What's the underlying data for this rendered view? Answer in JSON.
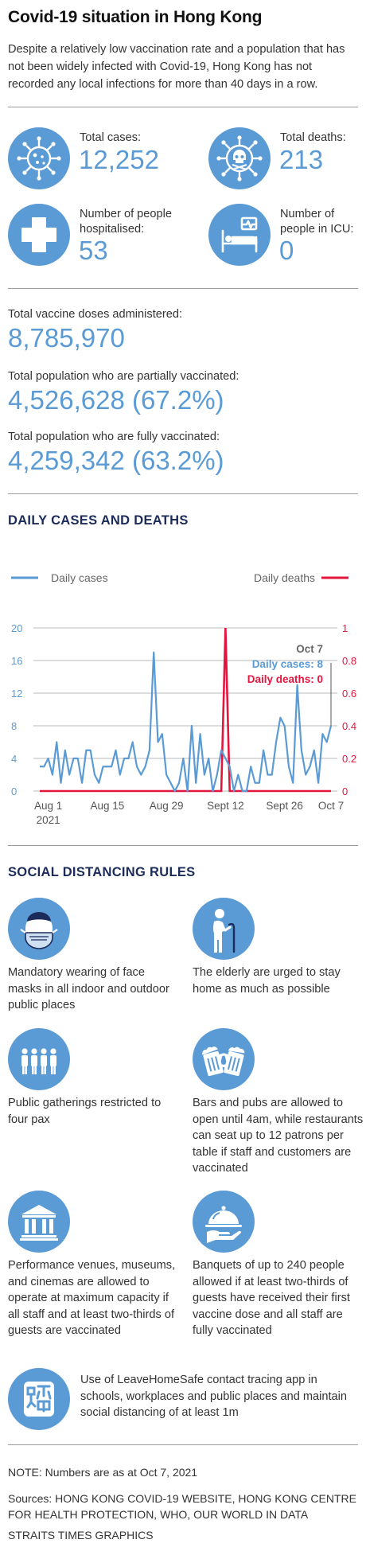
{
  "header": {
    "title": "Covid-19 situation in Hong Kong",
    "intro": "Despite a relatively low vaccination rate and a population that has not been widely infected with Covid-19, Hong Kong has not recorded any local infections for more than 40 days in a row."
  },
  "stats": {
    "total_cases": {
      "label": "Total cases:",
      "value": "12,252",
      "icon": "virus-icon"
    },
    "total_deaths": {
      "label": "Total deaths:",
      "value": "213",
      "icon": "virus-skull-icon"
    },
    "hospitalised": {
      "label": "Number of people hospitalised:",
      "value": "53",
      "icon": "medical-cross-icon"
    },
    "icu": {
      "label": "Number of people in ICU:",
      "value": "0",
      "icon": "hospital-bed-icon"
    }
  },
  "vaccine": {
    "doses_label": "Total vaccine doses administered:",
    "doses_value": "8,785,970",
    "partial_label": "Total population who are partially vaccinated:",
    "partial_value": "4,526,628 (67.2%)",
    "full_label": "Total population who are fully vaccinated:",
    "full_value": "4,259,342 (63.2%)"
  },
  "chart_section": {
    "title": "DAILY CASES AND DEATHS"
  },
  "chart_data": {
    "type": "line",
    "title": "DAILY CASES AND DEATHS",
    "x_labels": [
      "Aug 1",
      "Aug 15",
      "Aug 29",
      "Sept 12",
      "Sept 26",
      "Oct 7"
    ],
    "x_sublabel": "2021",
    "x_label_days": [
      0,
      14,
      28,
      42,
      56,
      67
    ],
    "y_left_ticks": [
      0,
      4,
      8,
      12,
      16,
      20
    ],
    "y_right_ticks": [
      "0",
      "0.2",
      "0.4",
      "0.6",
      "0.8",
      "1"
    ],
    "ylim_left": [
      0,
      20
    ],
    "ylim_right": [
      0,
      1
    ],
    "grid": true,
    "legend_placement": "top",
    "series": [
      {
        "name": "Daily cases",
        "axis": "left",
        "color": "#5b9bd5",
        "values": [
          3,
          3,
          4,
          2,
          6,
          1,
          5,
          2,
          4,
          4,
          1,
          5,
          5,
          2,
          1,
          3,
          3,
          3,
          5,
          2,
          4,
          4,
          6,
          3,
          2,
          3,
          5,
          17,
          6,
          7,
          2,
          1,
          0,
          1,
          4,
          0,
          8,
          1,
          7,
          2,
          4,
          0,
          2,
          5,
          4,
          3,
          0,
          2,
          0,
          0,
          3,
          1,
          1,
          5,
          2,
          2,
          6,
          9,
          8,
          3,
          1,
          13,
          5,
          2,
          3,
          5,
          1,
          7,
          6,
          8
        ],
        "x_start_day": -2
      },
      {
        "name": "Daily deaths",
        "axis": "right",
        "color": "#e3173e",
        "values": [
          0,
          0,
          0,
          0,
          0,
          0,
          0,
          0,
          0,
          0,
          0,
          0,
          0,
          0,
          0,
          0,
          0,
          0,
          0,
          0,
          0,
          0,
          0,
          0,
          0,
          0,
          0,
          0,
          0,
          0,
          0,
          0,
          0,
          0,
          0,
          0,
          0,
          0,
          0,
          0,
          0,
          0,
          0,
          0,
          1,
          0,
          0,
          0,
          0,
          0,
          0,
          0,
          0,
          0,
          0,
          0,
          0,
          0,
          0,
          0,
          0,
          0,
          0,
          0,
          0,
          0,
          0,
          0,
          0,
          0
        ],
        "x_start_day": -2
      }
    ],
    "annotation": {
      "date": "Oct 7",
      "cases_text": "Daily cases: 8",
      "deaths_text": "Daily deaths: 0"
    }
  },
  "rules_section": {
    "title": "SOCIAL DISTANCING RULES"
  },
  "rules": [
    {
      "text": "Mandatory wearing of face masks in all indoor and outdoor public places",
      "icon": "face-mask-icon"
    },
    {
      "text": "The elderly are urged to stay home as much as possible",
      "icon": "elderly-person-icon"
    },
    {
      "text": "Public gatherings restricted to four pax",
      "icon": "group-of-four-icon"
    },
    {
      "text": "Bars and pubs are allowed to open until 4am, while restaurants can seat up to 12 patrons per table if staff and customers are vaccinated",
      "icon": "beer-mugs-icon"
    },
    {
      "text": "Performance venues, museums, and cinemas are allowed to operate at maximum capacity if all staff and at least two-thirds of guests are vaccinated",
      "icon": "museum-icon"
    },
    {
      "text": "Banquets of up to 240 people allowed if at least two-thirds of guests have received their first vaccine dose and all staff are fully vaccinated",
      "icon": "serving-dish-icon"
    },
    {
      "text": "Use of LeaveHomeSafe contact tracing app in schools, workplaces and public places and maintain social distancing of at least 1m",
      "icon": "leavehomesafe-app-icon"
    }
  ],
  "footer": {
    "note": "NOTE: Numbers are as at Oct 7, 2021",
    "sources": "Sources: HONG KONG COVID-19 WEBSITE, HONG KONG CENTRE FOR HEALTH PROTECTION, WHO, OUR WORLD IN DATA",
    "credit": "STRAITS TIMES GRAPHICS"
  },
  "colors": {
    "accent": "#5b9bd5",
    "deaths": "#e3173e",
    "heading": "#1b2b5a",
    "annotation": "#666666"
  }
}
